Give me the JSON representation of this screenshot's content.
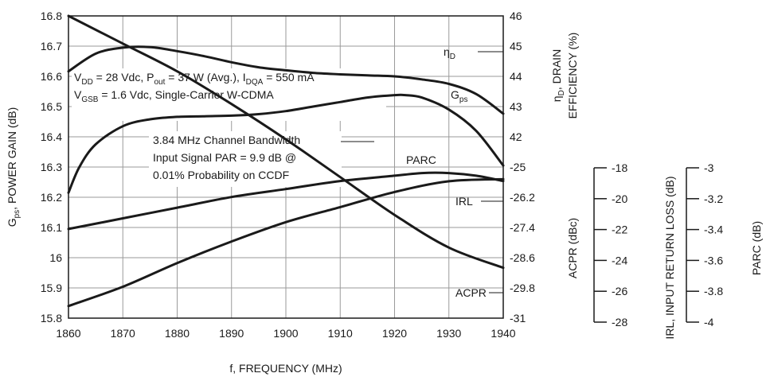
{
  "chart_data": {
    "type": "line",
    "xlabel": "f, FREQUENCY (MHz)",
    "x_ticks": [
      "1860",
      "1870",
      "1880",
      "1890",
      "1900",
      "1910",
      "1920",
      "1930",
      "1940"
    ],
    "xlim": [
      1860,
      1940
    ],
    "left_axis": {
      "label": "G_ps, POWER GAIN (dB)",
      "label_parts": [
        "G",
        "ps",
        ", POWER GAIN (dB)"
      ],
      "ylim": [
        15.8,
        16.8
      ],
      "ticks": [
        "16.8",
        "16.7",
        "16.6",
        "16.5",
        "16.4",
        "16.3",
        "16.2",
        "16.1",
        "16",
        "15.9",
        "15.8"
      ]
    },
    "right_axis_upper": {
      "label": "ηD, DRAIN EFFICIENCY (%)",
      "label_line1_parts": [
        "η",
        "D",
        ", DRAIN"
      ],
      "label_line2": "EFFICIENCY (%)",
      "ylim": [
        40,
        46
      ],
      "ticks": [
        "46",
        "45",
        "44",
        "43",
        "42"
      ]
    },
    "right_axis_lower": {
      "label": "ACPR (dBc)",
      "ylim": [
        -31,
        -25
      ],
      "ticks": [
        "-25",
        "-26.2",
        "-27.4",
        "-28.6",
        "-29.8",
        "-31"
      ]
    },
    "extra_axis_irl": {
      "label": "IRL, INPUT RETURN LOSS (dB)",
      "ylim": [
        -28,
        -18
      ],
      "ticks": [
        "-18",
        "-20",
        "-22",
        "-24",
        "-26",
        "-28"
      ]
    },
    "extra_axis_parc": {
      "label": "PARC (dB)",
      "ylim": [
        -4,
        -3
      ],
      "ticks": [
        "-3",
        "-3.2",
        "-3.4",
        "-3.6",
        "-3.8",
        "-4"
      ]
    },
    "series": [
      {
        "name": "ηD",
        "label_parts": [
          "η",
          "D"
        ],
        "axis": "right_axis_upper",
        "x": [
          1860,
          1865,
          1870,
          1875,
          1880,
          1885,
          1890,
          1895,
          1900,
          1905,
          1910,
          1915,
          1920,
          1925,
          1930,
          1935,
          1940
        ],
        "values": [
          44.9,
          45.25,
          45.37,
          45.38,
          45.3,
          45.2,
          45.08,
          44.98,
          44.92,
          44.87,
          44.84,
          44.82,
          44.8,
          44.74,
          44.65,
          44.45,
          44.06
        ]
      },
      {
        "name": "Gps",
        "label_parts": [
          "G",
          "ps"
        ],
        "axis": "left_axis",
        "x": [
          1860,
          1862,
          1865,
          1870,
          1875,
          1880,
          1885,
          1890,
          1895,
          1900,
          1905,
          1910,
          1915,
          1920,
          1922,
          1925,
          1930,
          1935,
          1940
        ],
        "values": [
          16.215,
          16.3,
          16.375,
          16.435,
          16.458,
          16.466,
          16.468,
          16.47,
          16.475,
          16.485,
          16.5,
          16.515,
          16.53,
          16.538,
          16.538,
          16.53,
          16.49,
          16.42,
          16.305
        ]
      },
      {
        "name": "PARC",
        "label_parts": [
          "PARC"
        ],
        "axis": "extra_axis_parc",
        "x": [
          1860,
          1870,
          1880,
          1890,
          1900,
          1910,
          1920,
          1925,
          1930,
          1935,
          1940
        ],
        "values": [
          -3.7,
          -3.66,
          -3.62,
          -3.58,
          -3.55,
          -3.52,
          -3.5,
          -3.49,
          -3.49,
          -3.5,
          -3.52
        ]
      },
      {
        "name": "IRL",
        "label_parts": [
          "IRL"
        ],
        "axis": "extra_axis_irl",
        "x": [
          1860,
          1870,
          1880,
          1890,
          1900,
          1910,
          1920,
          1930,
          1940
        ],
        "values": [
          -29.4,
          -28.5,
          -27.4,
          -26.4,
          -25.5,
          -24.8,
          -24.1,
          -23.6,
          -23.5
        ]
      },
      {
        "name": "ACPR",
        "label_parts": [
          "ACPR"
        ],
        "axis": "right_axis_lower",
        "x": [
          1860,
          1870,
          1880,
          1890,
          1900,
          1910,
          1920,
          1930,
          1940
        ],
        "values": [
          -25.0,
          -25.55,
          -26.1,
          -26.75,
          -27.45,
          -28.2,
          -28.95,
          -29.6,
          -30.0
        ]
      }
    ],
    "annotations": {
      "conditions_line1_parts": [
        {
          "t": "V",
          "sub": false
        },
        {
          "t": "DD",
          "sub": true
        },
        {
          "t": " = 28 Vdc, P",
          "sub": false
        },
        {
          "t": "out",
          "sub": true
        },
        {
          "t": " = 37 W (Avg.), I",
          "sub": false
        },
        {
          "t": "DQA",
          "sub": true
        },
        {
          "t": " = 550 mA",
          "sub": false
        }
      ],
      "conditions_line2_parts": [
        {
          "t": "V",
          "sub": false
        },
        {
          "t": "GSB",
          "sub": true
        },
        {
          "t": " = 1.6 Vdc, Single-Carrier W-CDMA",
          "sub": false
        }
      ],
      "signal_lines": [
        "3.84 MHz Channel Bandwidth",
        "Input Signal PAR = 9.9 dB @",
        "0.01% Probability on CCDF"
      ]
    },
    "grid": true,
    "legend": "inline labels"
  }
}
